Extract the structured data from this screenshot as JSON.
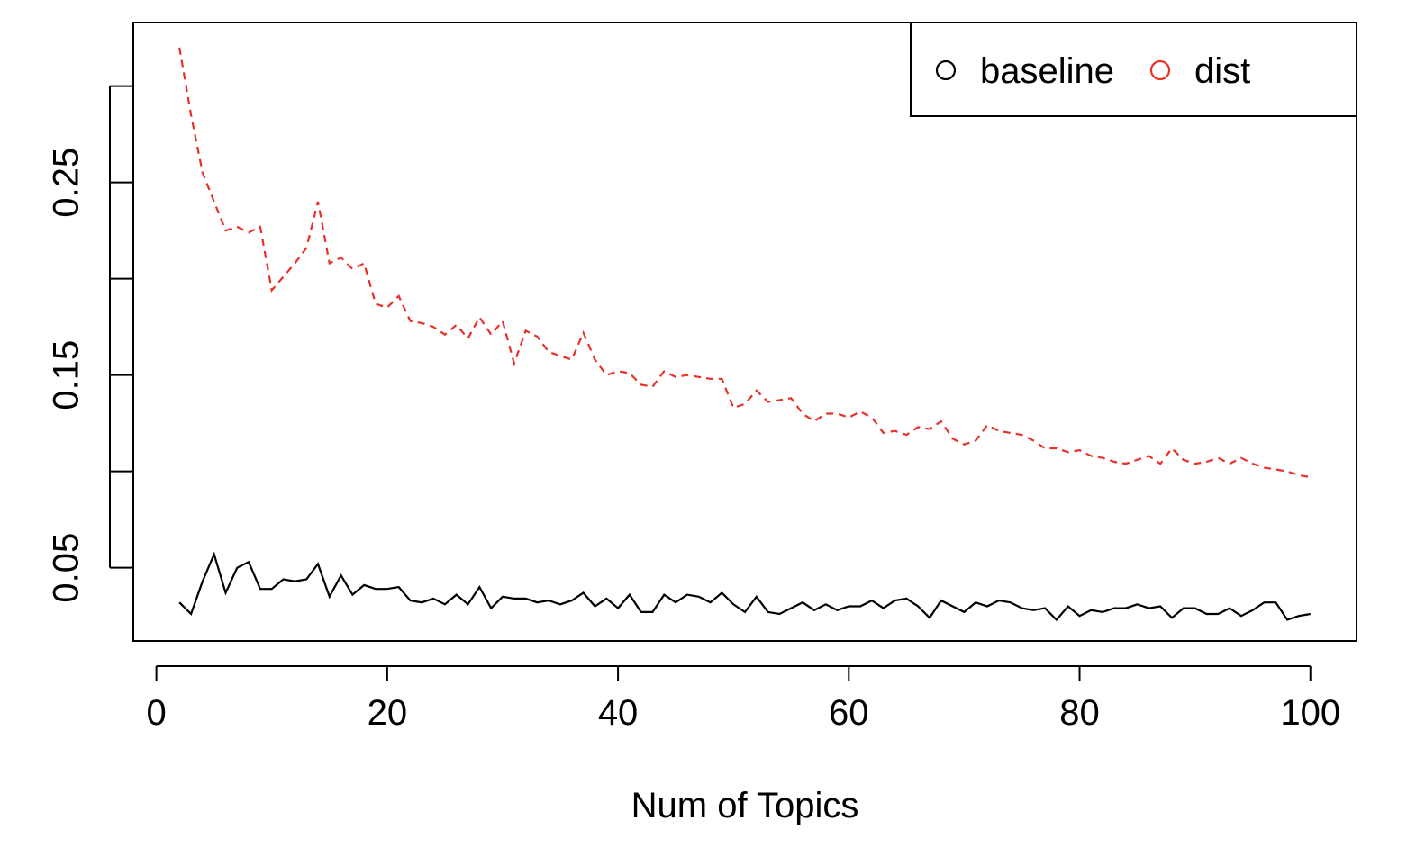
{
  "chart_data": {
    "type": "line",
    "title": "",
    "xlabel": "Num of Topics",
    "ylabel": "",
    "xlim": [
      -2,
      104
    ],
    "ylim": [
      0.012,
      0.333
    ],
    "x_ticks": [
      0,
      20,
      40,
      60,
      80,
      100
    ],
    "x_tick_labels": [
      "0",
      "20",
      "40",
      "60",
      "80",
      "100"
    ],
    "y_ticks": [
      0.05,
      0.15,
      0.25
    ],
    "y_tick_labels": [
      "0.05",
      "0.15",
      "0.25"
    ],
    "y_minor_ticks": [
      0.05,
      0.1,
      0.15,
      0.2,
      0.25,
      0.3
    ],
    "grid": false,
    "legend": {
      "placement": "top-right",
      "horizontal": true,
      "entries": [
        {
          "label": "baseline",
          "color": "#000000",
          "marker": "open-circle"
        },
        {
          "label": "dist",
          "color": "#e8302a",
          "marker": "open-circle"
        }
      ]
    },
    "series": [
      {
        "name": "baseline",
        "color": "#000000",
        "line_style": "solid",
        "x": [
          2,
          3,
          4,
          5,
          6,
          7,
          8,
          9,
          10,
          11,
          12,
          13,
          14,
          15,
          16,
          17,
          18,
          19,
          20,
          21,
          22,
          23,
          24,
          25,
          26,
          27,
          28,
          29,
          30,
          31,
          32,
          33,
          34,
          35,
          36,
          37,
          38,
          39,
          40,
          41,
          42,
          43,
          44,
          45,
          46,
          47,
          48,
          49,
          50,
          51,
          52,
          53,
          54,
          55,
          56,
          57,
          58,
          59,
          60,
          61,
          62,
          63,
          64,
          65,
          66,
          67,
          68,
          69,
          70,
          71,
          72,
          73,
          74,
          75,
          76,
          77,
          78,
          79,
          80,
          81,
          82,
          83,
          84,
          85,
          86,
          87,
          88,
          89,
          90,
          91,
          92,
          93,
          94,
          95,
          96,
          97,
          98,
          99,
          100
        ],
        "values": [
          0.032,
          0.026,
          0.043,
          0.057,
          0.037,
          0.05,
          0.053,
          0.039,
          0.039,
          0.044,
          0.043,
          0.044,
          0.052,
          0.035,
          0.046,
          0.036,
          0.041,
          0.039,
          0.039,
          0.04,
          0.033,
          0.032,
          0.034,
          0.031,
          0.036,
          0.031,
          0.04,
          0.029,
          0.035,
          0.034,
          0.034,
          0.032,
          0.033,
          0.031,
          0.033,
          0.037,
          0.03,
          0.034,
          0.029,
          0.036,
          0.027,
          0.027,
          0.036,
          0.032,
          0.036,
          0.035,
          0.032,
          0.037,
          0.031,
          0.027,
          0.035,
          0.027,
          0.026,
          0.029,
          0.032,
          0.028,
          0.031,
          0.028,
          0.03,
          0.03,
          0.033,
          0.029,
          0.033,
          0.034,
          0.03,
          0.024,
          0.033,
          0.03,
          0.027,
          0.032,
          0.03,
          0.033,
          0.032,
          0.029,
          0.028,
          0.029,
          0.023,
          0.03,
          0.025,
          0.028,
          0.027,
          0.029,
          0.029,
          0.031,
          0.029,
          0.03,
          0.024,
          0.029,
          0.029,
          0.026,
          0.026,
          0.029,
          0.025,
          0.028,
          0.032,
          0.032,
          0.023,
          0.025,
          0.026
        ]
      },
      {
        "name": "dist",
        "color": "#e8302a",
        "line_style": "dashed",
        "x": [
          2,
          3,
          4,
          5,
          6,
          7,
          8,
          9,
          10,
          11,
          12,
          13,
          14,
          15,
          16,
          17,
          18,
          19,
          20,
          21,
          22,
          23,
          24,
          25,
          26,
          27,
          28,
          29,
          30,
          31,
          32,
          33,
          34,
          35,
          36,
          37,
          38,
          39,
          40,
          41,
          42,
          43,
          44,
          45,
          46,
          47,
          48,
          49,
          50,
          51,
          52,
          53,
          54,
          55,
          56,
          57,
          58,
          59,
          60,
          61,
          62,
          63,
          64,
          65,
          66,
          67,
          68,
          69,
          70,
          71,
          72,
          73,
          74,
          75,
          76,
          77,
          78,
          79,
          80,
          81,
          82,
          83,
          84,
          85,
          86,
          87,
          88,
          89,
          90,
          91,
          92,
          93,
          94,
          95,
          96,
          97,
          98,
          99,
          100
        ],
        "values": [
          0.32,
          0.285,
          0.255,
          0.24,
          0.225,
          0.227,
          0.224,
          0.227,
          0.194,
          0.201,
          0.208,
          0.216,
          0.24,
          0.208,
          0.211,
          0.205,
          0.208,
          0.187,
          0.185,
          0.191,
          0.178,
          0.177,
          0.175,
          0.171,
          0.176,
          0.169,
          0.18,
          0.171,
          0.178,
          0.156,
          0.173,
          0.17,
          0.162,
          0.16,
          0.158,
          0.172,
          0.158,
          0.15,
          0.152,
          0.151,
          0.145,
          0.144,
          0.152,
          0.149,
          0.15,
          0.149,
          0.148,
          0.148,
          0.133,
          0.135,
          0.142,
          0.136,
          0.137,
          0.138,
          0.13,
          0.126,
          0.13,
          0.13,
          0.128,
          0.131,
          0.128,
          0.12,
          0.121,
          0.119,
          0.123,
          0.122,
          0.126,
          0.117,
          0.114,
          0.116,
          0.124,
          0.121,
          0.12,
          0.119,
          0.116,
          0.112,
          0.112,
          0.11,
          0.111,
          0.108,
          0.107,
          0.105,
          0.104,
          0.106,
          0.108,
          0.104,
          0.112,
          0.106,
          0.104,
          0.105,
          0.107,
          0.104,
          0.107,
          0.104,
          0.102,
          0.101,
          0.1,
          0.098,
          0.097
        ]
      }
    ]
  }
}
